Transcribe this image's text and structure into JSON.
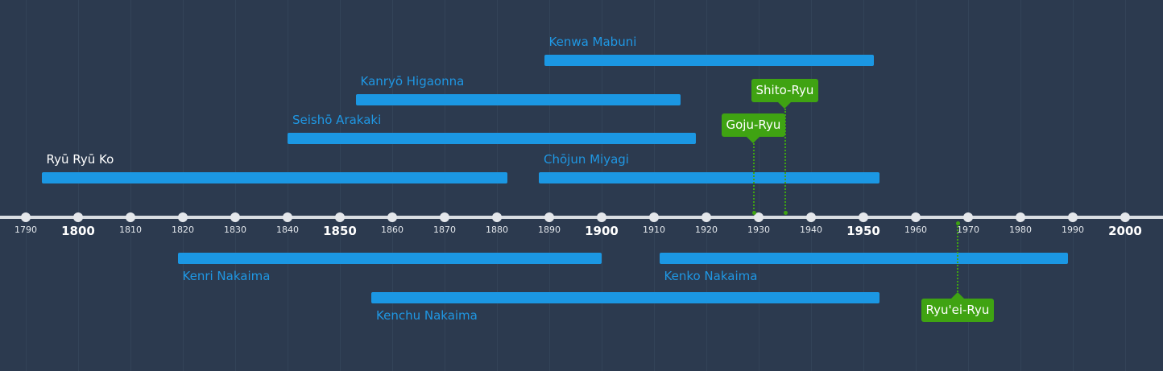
{
  "colors": {
    "background": "#2c3a4f",
    "bar": "#1b97e3",
    "event": "#3fa312",
    "label": "#1f97e3",
    "highlight_label": "#ffffff"
  },
  "axis": {
    "start": 1790,
    "end": 2000,
    "tick_step": 10,
    "major_ticks": [
      1800,
      1850,
      1900,
      1950,
      2000
    ]
  },
  "people": [
    {
      "name": "Ryū Ryū Ko",
      "start": 1793,
      "end": 1882,
      "side": "above",
      "level": 1,
      "highlight": true
    },
    {
      "name": "Seishō Arakaki",
      "start": 1840,
      "end": 1918,
      "side": "above",
      "level": 2
    },
    {
      "name": "Kanryō Higaonna",
      "start": 1853,
      "end": 1915,
      "side": "above",
      "level": 3
    },
    {
      "name": "Kenwa Mabuni",
      "start": 1889,
      "end": 1952,
      "side": "above",
      "level": 4
    },
    {
      "name": "Chōjun Miyagi",
      "start": 1888,
      "end": 1953,
      "side": "above",
      "level": 1
    },
    {
      "name": "Kenri Nakaima",
      "start": 1819,
      "end": 1900,
      "side": "below",
      "level": 1
    },
    {
      "name": "Kenko Nakaima",
      "start": 1911,
      "end": 1989,
      "side": "below",
      "level": 1
    },
    {
      "name": "Kenchu Nakaima",
      "start": 1856,
      "end": 1953,
      "side": "below",
      "level": 2
    }
  ],
  "events": [
    {
      "name": "Goju-Ryu",
      "year": 1929,
      "side": "above",
      "level": 2
    },
    {
      "name": "Shito-Ryu",
      "year": 1935,
      "side": "above",
      "level": 3
    },
    {
      "name": "Ryu'ei-Ryu",
      "year": 1968,
      "side": "below",
      "level": 1
    }
  ]
}
